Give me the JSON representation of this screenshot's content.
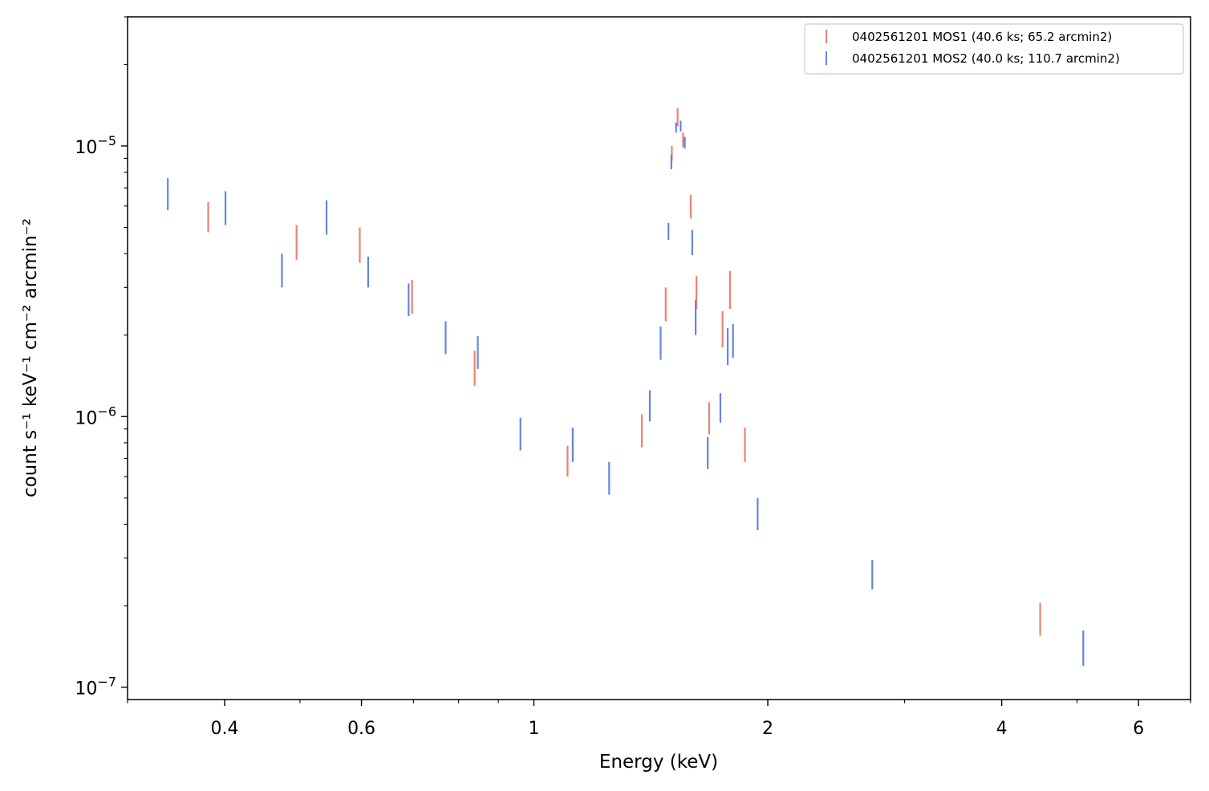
{
  "chart_data": {
    "type": "scatter",
    "xlabel": "Energy (keV)",
    "ylabel": "count s⁻¹ keV⁻¹ cm⁻² arcmin⁻²",
    "x_scale": "log",
    "y_scale": "log",
    "xlim": [
      0.3,
      7.0
    ],
    "ylim": [
      9e-08,
      3e-05
    ],
    "x_ticks": [
      {
        "value": 0.4,
        "label": "0.4"
      },
      {
        "value": 0.6,
        "label": "0.6"
      },
      {
        "value": 1,
        "label": "1"
      },
      {
        "value": 2,
        "label": "2"
      },
      {
        "value": 4,
        "label": "4"
      },
      {
        "value": 6,
        "label": "6"
      }
    ],
    "x_minor_ticks": [
      0.3,
      0.5,
      0.7,
      0.8,
      0.9,
      3,
      5,
      7
    ],
    "y_ticks": [
      {
        "value": 1e-07,
        "base": "10",
        "exp": "−7"
      },
      {
        "value": 1e-06,
        "base": "10",
        "exp": "−6"
      },
      {
        "value": 1e-05,
        "base": "10",
        "exp": "−5"
      }
    ],
    "y_minor_ticks": [
      2e-07,
      3e-07,
      4e-07,
      5e-07,
      6e-07,
      7e-07,
      8e-07,
      9e-07,
      2e-06,
      3e-06,
      4e-06,
      5e-06,
      6e-06,
      7e-06,
      8e-06,
      9e-06,
      2e-05,
      3e-05
    ],
    "legend_position": "top-right",
    "series": [
      {
        "name": "0402561201 MOS1 (40.6 ks; 65.2 arcmin2)",
        "color": "#f08070",
        "points": [
          {
            "x": 0.381,
            "ylo": 4.8e-06,
            "yhi": 6.2e-06
          },
          {
            "x": 0.495,
            "ylo": 3.8e-06,
            "yhi": 5.1e-06
          },
          {
            "x": 0.597,
            "ylo": 3.7e-06,
            "yhi": 5e-06
          },
          {
            "x": 0.697,
            "ylo": 2.4e-06,
            "yhi": 3.2e-06
          },
          {
            "x": 0.839,
            "ylo": 1.3e-06,
            "yhi": 1.75e-06
          },
          {
            "x": 1.105,
            "ylo": 6e-07,
            "yhi": 7.8e-07
          },
          {
            "x": 1.377,
            "ylo": 7.7e-07,
            "yhi": 1.02e-06
          },
          {
            "x": 1.478,
            "ylo": 2.25e-06,
            "yhi": 3e-06
          },
          {
            "x": 1.505,
            "ylo": 8.8e-06,
            "yhi": 1e-05
          },
          {
            "x": 1.531,
            "ylo": 1.18e-05,
            "yhi": 1.38e-05
          },
          {
            "x": 1.556,
            "ylo": 9.9e-06,
            "yhi": 1.12e-05
          },
          {
            "x": 1.592,
            "ylo": 5.4e-06,
            "yhi": 6.6e-06
          },
          {
            "x": 1.619,
            "ylo": 2.5e-06,
            "yhi": 3.3e-06
          },
          {
            "x": 1.681,
            "ylo": 8.6e-07,
            "yhi": 1.13e-06
          },
          {
            "x": 1.749,
            "ylo": 1.8e-06,
            "yhi": 2.45e-06
          },
          {
            "x": 1.788,
            "ylo": 2.5e-06,
            "yhi": 3.45e-06
          },
          {
            "x": 1.869,
            "ylo": 6.8e-07,
            "yhi": 9.1e-07
          },
          {
            "x": 4.483,
            "ylo": 1.55e-07,
            "yhi": 2.05e-07
          }
        ]
      },
      {
        "name": "0402561201 MOS2 (40.0 ks; 110.7 arcmin2)",
        "color": "#6585e0",
        "points": [
          {
            "x": 0.338,
            "ylo": 5.8e-06,
            "yhi": 7.6e-06
          },
          {
            "x": 0.401,
            "ylo": 5.1e-06,
            "yhi": 6.8e-06
          },
          {
            "x": 0.474,
            "ylo": 3e-06,
            "yhi": 4e-06
          },
          {
            "x": 0.541,
            "ylo": 4.7e-06,
            "yhi": 6.3e-06
          },
          {
            "x": 0.612,
            "ylo": 3e-06,
            "yhi": 3.9e-06
          },
          {
            "x": 0.69,
            "ylo": 2.35e-06,
            "yhi": 3.1e-06
          },
          {
            "x": 0.77,
            "ylo": 1.7e-06,
            "yhi": 2.25e-06
          },
          {
            "x": 0.847,
            "ylo": 1.5e-06,
            "yhi": 1.98e-06
          },
          {
            "x": 0.961,
            "ylo": 7.5e-07,
            "yhi": 9.9e-07
          },
          {
            "x": 1.122,
            "ylo": 6.8e-07,
            "yhi": 9.1e-07
          },
          {
            "x": 1.25,
            "ylo": 5.15e-07,
            "yhi": 6.8e-07
          },
          {
            "x": 1.41,
            "ylo": 9.6e-07,
            "yhi": 1.25e-06
          },
          {
            "x": 1.456,
            "ylo": 1.62e-06,
            "yhi": 2.15e-06
          },
          {
            "x": 1.49,
            "ylo": 4.5e-06,
            "yhi": 5.2e-06
          },
          {
            "x": 1.503,
            "ylo": 8.2e-06,
            "yhi": 9.3e-06
          },
          {
            "x": 1.524,
            "ylo": 1.12e-05,
            "yhi": 1.22e-05
          },
          {
            "x": 1.545,
            "ylo": 1.13e-05,
            "yhi": 1.24e-05
          },
          {
            "x": 1.564,
            "ylo": 9.8e-06,
            "yhi": 1.08e-05
          },
          {
            "x": 1.599,
            "ylo": 3.95e-06,
            "yhi": 4.9e-06
          },
          {
            "x": 1.615,
            "ylo": 2e-06,
            "yhi": 2.7e-06
          },
          {
            "x": 1.674,
            "ylo": 6.4e-07,
            "yhi": 8.4e-07
          },
          {
            "x": 1.738,
            "ylo": 9.5e-07,
            "yhi": 1.22e-06
          },
          {
            "x": 1.776,
            "ylo": 1.55e-06,
            "yhi": 2.12e-06
          },
          {
            "x": 1.804,
            "ylo": 1.65e-06,
            "yhi": 2.2e-06
          },
          {
            "x": 1.941,
            "ylo": 3.8e-07,
            "yhi": 5e-07
          },
          {
            "x": 2.726,
            "ylo": 2.3e-07,
            "yhi": 2.95e-07
          },
          {
            "x": 5.094,
            "ylo": 1.2e-07,
            "yhi": 1.62e-07
          }
        ]
      }
    ]
  }
}
